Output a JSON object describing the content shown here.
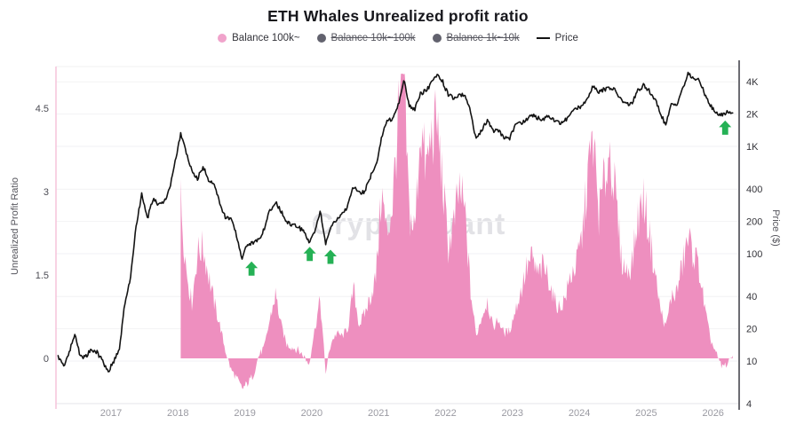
{
  "title": "ETH Whales Unrealized profit ratio",
  "watermark": "CryptoQuant",
  "colors": {
    "pink_area": "#ee8fbf",
    "pink_legend_dot": "#f0a3cb",
    "disabled_gray": "#62626e",
    "price_black": "#141414",
    "arrow_green": "#25b155",
    "grid": "#f2f2f4",
    "watermark_gray": "#e2e2e6"
  },
  "legend": {
    "items": [
      {
        "label": "Balance 100k~",
        "color": "#f0a3cb",
        "marker": "dot",
        "enabled": true
      },
      {
        "label": "Balance 10k~100k",
        "color": "#62626e",
        "marker": "dot",
        "enabled": false
      },
      {
        "label": "Balance 1k~10k",
        "color": "#62626e",
        "marker": "dot",
        "enabled": false
      },
      {
        "label": "Price",
        "color": "#141414",
        "marker": "line",
        "enabled": true
      }
    ]
  },
  "chart_data": {
    "type": "combo",
    "title": "ETH Whales Unrealized profit ratio",
    "x_unit": "decimal_year_monthly",
    "x_start_year": 2016.2083,
    "x_step_years": 0.083333,
    "x_ticks": [
      2017,
      2018,
      2019,
      2020,
      2021,
      2022,
      2023,
      2024,
      2025,
      2026
    ],
    "left_axis": {
      "label": "Unrealized Profit Ratio",
      "ticks": [
        0,
        1.5,
        3,
        4.5
      ],
      "range": [
        -0.85,
        5.25
      ],
      "scale": "linear"
    },
    "right_axis": {
      "label": "Price ($)",
      "scale": "log",
      "ticks": [
        {
          "label": "4",
          "value": 4
        },
        {
          "label": "10",
          "value": 10
        },
        {
          "label": "20",
          "value": 20
        },
        {
          "label": "40",
          "value": 40
        },
        {
          "label": "100",
          "value": 100
        },
        {
          "label": "200",
          "value": 200
        },
        {
          "label": "400",
          "value": 400
        },
        {
          "label": "1K",
          "value": 1000
        },
        {
          "label": "2K",
          "value": 2000
        },
        {
          "label": "4K",
          "value": 4000
        }
      ]
    },
    "grid": "horizontal-faint",
    "legend_position": "top",
    "series": [
      {
        "name": "Balance 100k~",
        "type": "area",
        "axis": "left",
        "color": "#ee8fbf",
        "values": [
          null,
          null,
          null,
          null,
          null,
          null,
          null,
          null,
          null,
          null,
          null,
          null,
          null,
          null,
          null,
          null,
          null,
          null,
          null,
          null,
          null,
          null,
          2.85,
          1.6,
          1.0,
          1.9,
          2.0,
          1.5,
          1.0,
          0.6,
          0.15,
          -0.2,
          -0.35,
          -0.55,
          -0.45,
          -0.3,
          0.05,
          0.2,
          0.7,
          1.15,
          0.6,
          0.25,
          0.2,
          0.15,
          0.05,
          -0.1,
          0.5,
          1.05,
          -0.25,
          0.3,
          0.45,
          0.4,
          0.55,
          1.25,
          0.6,
          0.8,
          1.1,
          1.45,
          3.0,
          2.2,
          2.8,
          4.3,
          5.05,
          2.6,
          2.3,
          4.2,
          3.4,
          4.0,
          4.25,
          3.1,
          2.0,
          2.4,
          3.05,
          2.6,
          1.2,
          0.4,
          0.75,
          1.05,
          0.55,
          0.7,
          0.45,
          0.5,
          0.85,
          1.2,
          1.6,
          1.8,
          1.5,
          1.65,
          1.45,
          1.05,
          0.9,
          1.1,
          1.5,
          1.7,
          2.2,
          3.3,
          3.95,
          2.6,
          3.2,
          3.75,
          2.9,
          1.8,
          1.55,
          1.75,
          2.5,
          2.9,
          2.3,
          1.6,
          0.9,
          0.55,
          1.1,
          1.2,
          1.7,
          2.15,
          1.9,
          1.6,
          0.9,
          0.35,
          0.1,
          -0.15,
          -0.1,
          0.05
        ]
      },
      {
        "name": "Price",
        "type": "line",
        "axis": "right",
        "color": "#141414",
        "values": [
          11,
          9,
          12,
          18,
          11,
          11,
          13,
          12,
          10,
          8,
          10,
          13,
          35,
          60,
          180,
          360,
          210,
          320,
          290,
          300,
          400,
          720,
          1300,
          880,
          580,
          500,
          650,
          490,
          450,
          290,
          220,
          210,
          150,
          90,
          125,
          125,
          137,
          168,
          255,
          300,
          250,
          195,
          185,
          180,
          160,
          130,
          160,
          250,
          125,
          180,
          205,
          235,
          280,
          420,
          370,
          380,
          520,
          650,
          1200,
          1750,
          1800,
          2400,
          4200,
          2400,
          2200,
          3100,
          3300,
          3900,
          4600,
          4000,
          3000,
          2800,
          3000,
          3000,
          2100,
          1150,
          1400,
          1750,
          1400,
          1400,
          1200,
          1200,
          1550,
          1650,
          1750,
          1950,
          1850,
          1800,
          1900,
          1750,
          1650,
          1750,
          2000,
          2250,
          2400,
          2900,
          3700,
          3200,
          3400,
          3500,
          3300,
          2700,
          2450,
          2550,
          3300,
          3700,
          3300,
          2800,
          2100,
          1550,
          2450,
          2500,
          3400,
          4700,
          4300,
          4100,
          3100,
          2400,
          2050,
          1950,
          2100,
          2050
        ]
      }
    ],
    "annotations": {
      "arrows": [
        {
          "t": 2019.1,
          "price": 95,
          "direction": "up",
          "color": "#25b155"
        },
        {
          "t": 2019.97,
          "price": 130,
          "direction": "up",
          "color": "#25b155"
        },
        {
          "t": 2020.28,
          "price": 122,
          "direction": "up",
          "color": "#25b155"
        },
        {
          "t": 2026.18,
          "price": 1950,
          "direction": "up",
          "color": "#25b155"
        }
      ]
    }
  }
}
